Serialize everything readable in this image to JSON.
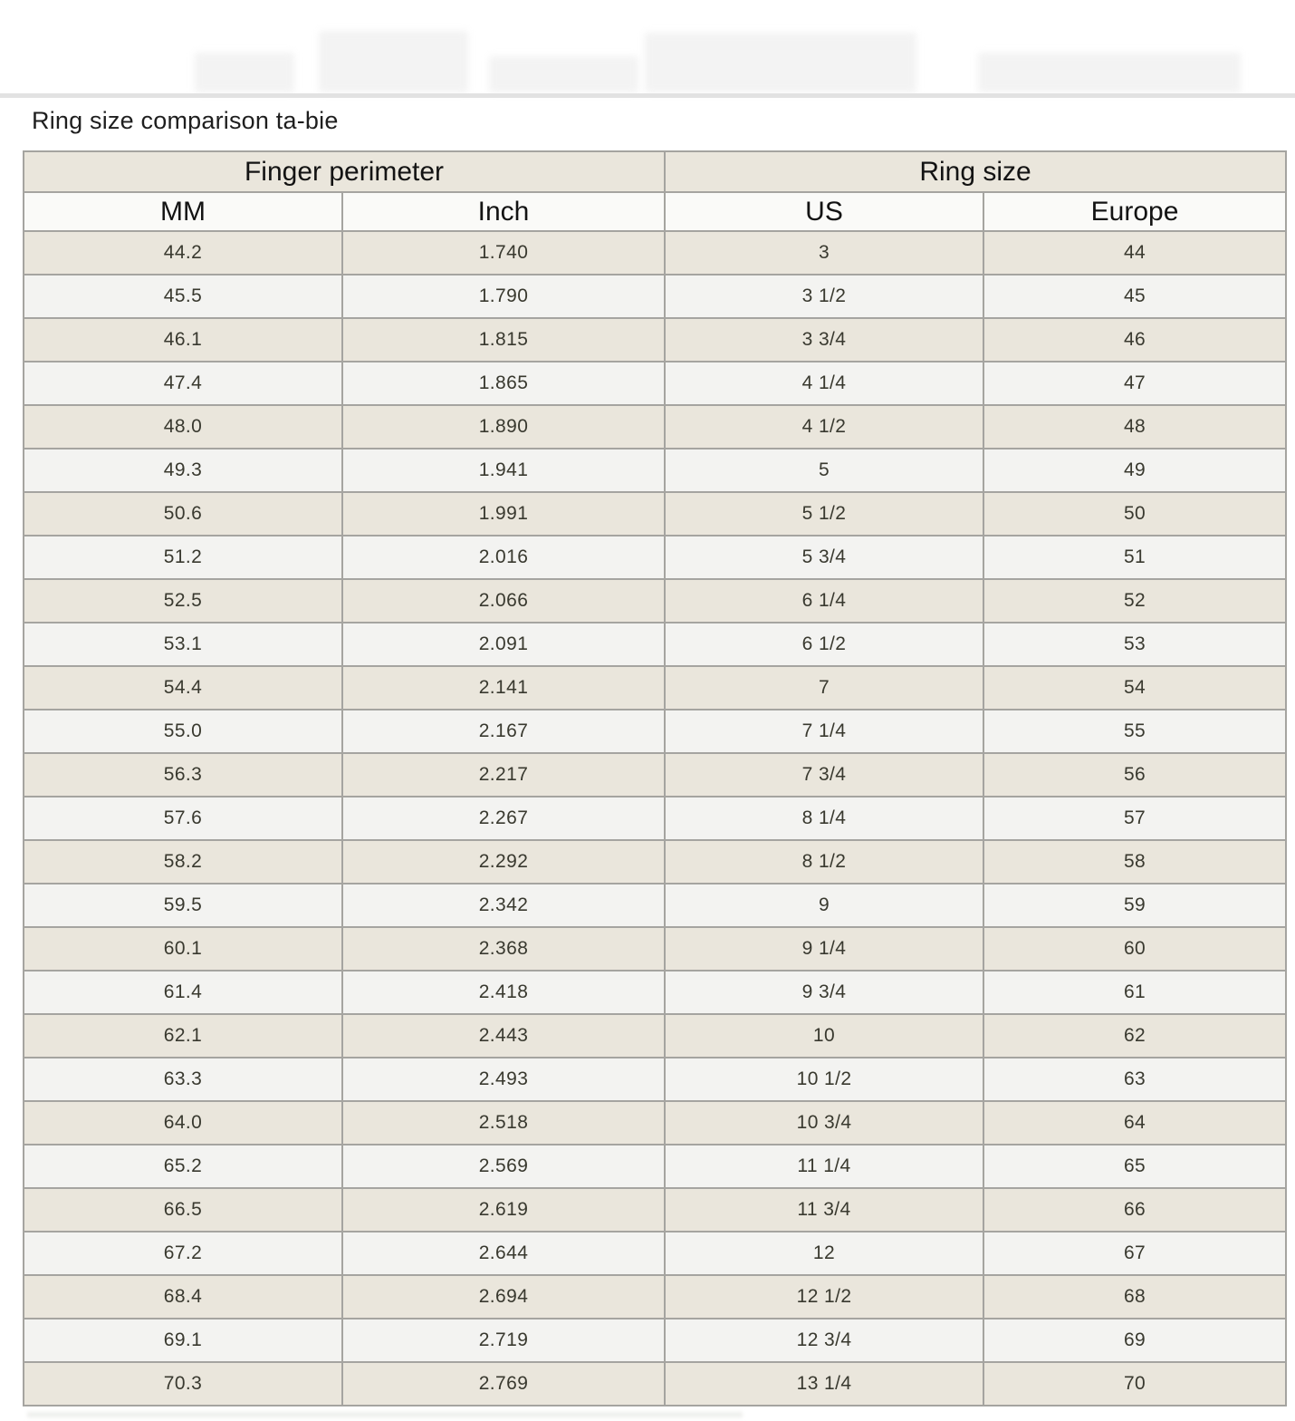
{
  "page": {
    "title": "Ring size comparison ta-bie"
  },
  "chart_data": {
    "type": "table",
    "title": "Ring size comparison ta-bie",
    "group_headers": [
      "Finger perimeter",
      "Ring size"
    ],
    "columns": [
      "MM",
      "Inch",
      "US",
      "Europe"
    ],
    "rows": [
      {
        "mm": "44.2",
        "inch": "1.740",
        "us": "3",
        "europe": "44"
      },
      {
        "mm": "45.5",
        "inch": "1.790",
        "us": "3 1/2",
        "europe": "45"
      },
      {
        "mm": "46.1",
        "inch": "1.815",
        "us": "3 3/4",
        "europe": "46"
      },
      {
        "mm": "47.4",
        "inch": "1.865",
        "us": "4 1/4",
        "europe": "47"
      },
      {
        "mm": "48.0",
        "inch": "1.890",
        "us": "4 1/2",
        "europe": "48"
      },
      {
        "mm": "49.3",
        "inch": "1.941",
        "us": "5",
        "europe": "49"
      },
      {
        "mm": "50.6",
        "inch": "1.991",
        "us": "5 1/2",
        "europe": "50"
      },
      {
        "mm": "51.2",
        "inch": "2.016",
        "us": "5 3/4",
        "europe": "51"
      },
      {
        "mm": "52.5",
        "inch": "2.066",
        "us": "6 1/4",
        "europe": "52"
      },
      {
        "mm": "53.1",
        "inch": "2.091",
        "us": "6 1/2",
        "europe": "53"
      },
      {
        "mm": "54.4",
        "inch": "2.141",
        "us": "7",
        "europe": "54"
      },
      {
        "mm": "55.0",
        "inch": "2.167",
        "us": "7 1/4",
        "europe": "55"
      },
      {
        "mm": "56.3",
        "inch": "2.217",
        "us": "7 3/4",
        "europe": "56"
      },
      {
        "mm": "57.6",
        "inch": "2.267",
        "us": "8 1/4",
        "europe": "57"
      },
      {
        "mm": "58.2",
        "inch": "2.292",
        "us": "8 1/2",
        "europe": "58"
      },
      {
        "mm": "59.5",
        "inch": "2.342",
        "us": "9",
        "europe": "59"
      },
      {
        "mm": "60.1",
        "inch": "2.368",
        "us": "9 1/4",
        "europe": "60"
      },
      {
        "mm": "61.4",
        "inch": "2.418",
        "us": "9 3/4",
        "europe": "61"
      },
      {
        "mm": "62.1",
        "inch": "2.443",
        "us": "10",
        "europe": "62"
      },
      {
        "mm": "63.3",
        "inch": "2.493",
        "us": "10 1/2",
        "europe": "63"
      },
      {
        "mm": "64.0",
        "inch": "2.518",
        "us": "10 3/4",
        "europe": "64"
      },
      {
        "mm": "65.2",
        "inch": "2.569",
        "us": "11 1/4",
        "europe": "65"
      },
      {
        "mm": "66.5",
        "inch": "2.619",
        "us": "11 3/4",
        "europe": "66"
      },
      {
        "mm": "67.2",
        "inch": "2.644",
        "us": "12",
        "europe": "67"
      },
      {
        "mm": "68.4",
        "inch": "2.694",
        "us": "12 1/2",
        "europe": "68"
      },
      {
        "mm": "69.1",
        "inch": "2.719",
        "us": "12 3/4",
        "europe": "69"
      },
      {
        "mm": "70.3",
        "inch": "2.769",
        "us": "13 1/4",
        "europe": "70"
      }
    ]
  },
  "colors": {
    "row_beige": "#eae6dc",
    "row_light": "#f3f3f1",
    "header_group_bg": "#eae6dc",
    "header_columns_bg": "#fafaf8",
    "grid_border": "#a5a4a0",
    "outer_border": "#94938d",
    "top_band": "#e2e2e2",
    "title_text": "#1e1e1e",
    "cell_text": "#39392f"
  }
}
